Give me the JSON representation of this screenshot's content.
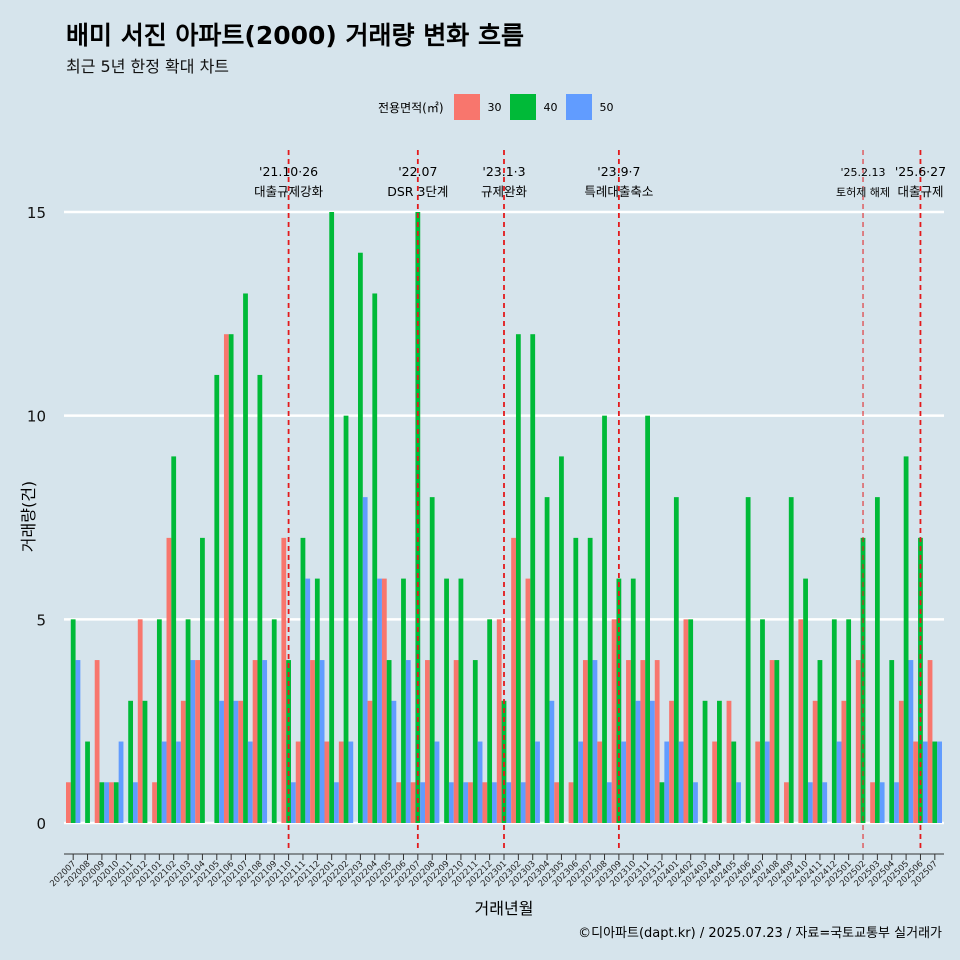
{
  "title": "배미 서진 아파트(2000) 거래량 변화 흐름",
  "subtitle": "최근 5년 한정 확대 차트",
  "legend": {
    "title": "전용면적(㎡)",
    "items": [
      {
        "label": "30",
        "color": "#f8766d"
      },
      {
        "label": "40",
        "color": "#00ba38"
      },
      {
        "label": "50",
        "color": "#619cff"
      }
    ]
  },
  "footer": "©디아파트(dapt.kr) / 2025.07.23 / 자료=국토교통부 실거래가",
  "chart_data": {
    "type": "bar",
    "xlabel": "거래년월",
    "ylabel": "거래량(건)",
    "ylim": [
      0,
      15.5
    ],
    "yticks": [
      0,
      5,
      10,
      15
    ],
    "grid": true,
    "legend_position": "top",
    "categories": [
      "202007",
      "202008",
      "202009",
      "202010",
      "202011",
      "202012",
      "202101",
      "202102",
      "202103",
      "202104",
      "202105",
      "202106",
      "202107",
      "202108",
      "202109",
      "202110",
      "202111",
      "202112",
      "202201",
      "202202",
      "202203",
      "202204",
      "202205",
      "202206",
      "202207",
      "202208",
      "202209",
      "202210",
      "202211",
      "202212",
      "202301",
      "202302",
      "202303",
      "202304",
      "202305",
      "202306",
      "202307",
      "202308",
      "202309",
      "202310",
      "202311",
      "202312",
      "202401",
      "202402",
      "202403",
      "202404",
      "202405",
      "202406",
      "202407",
      "202408",
      "202409",
      "202410",
      "202411",
      "202412",
      "202501",
      "202502",
      "202503",
      "202504",
      "202505",
      "202506",
      "202507"
    ],
    "series": [
      {
        "name": "30",
        "color": "#f8766d",
        "values": [
          1,
          null,
          4,
          1,
          null,
          5,
          1,
          7,
          3,
          4,
          null,
          12,
          3,
          4,
          null,
          7,
          2,
          4,
          2,
          2,
          null,
          3,
          6,
          1,
          1,
          4,
          null,
          4,
          1,
          1,
          5,
          7,
          6,
          null,
          1,
          1,
          4,
          2,
          5,
          4,
          4,
          4,
          3,
          5,
          null,
          2,
          3,
          null,
          2,
          4,
          1,
          5,
          3,
          null,
          3,
          4,
          1,
          null,
          3,
          2,
          4
        ]
      },
      {
        "name": "40",
        "color": "#00ba38",
        "values": [
          5,
          2,
          1,
          1,
          3,
          3,
          5,
          9,
          5,
          7,
          11,
          12,
          13,
          11,
          5,
          4,
          7,
          6,
          15,
          10,
          14,
          13,
          4,
          6,
          15,
          8,
          6,
          6,
          4,
          5,
          3,
          12,
          12,
          8,
          9,
          7,
          7,
          10,
          6,
          6,
          10,
          1,
          8,
          5,
          3,
          3,
          2,
          8,
          5,
          4,
          8,
          6,
          4,
          5,
          5,
          7,
          8,
          4,
          9,
          7,
          2
        ]
      },
      {
        "name": "50",
        "color": "#619cff",
        "values": [
          4,
          null,
          1,
          2,
          1,
          null,
          2,
          2,
          4,
          null,
          3,
          3,
          2,
          4,
          null,
          1,
          6,
          4,
          1,
          2,
          8,
          6,
          3,
          4,
          1,
          2,
          1,
          1,
          2,
          1,
          1,
          1,
          2,
          3,
          null,
          2,
          4,
          1,
          2,
          3,
          3,
          2,
          2,
          1,
          null,
          null,
          1,
          null,
          2,
          null,
          null,
          1,
          1,
          2,
          null,
          null,
          1,
          1,
          4,
          2,
          2
        ]
      }
    ],
    "annotations": [
      {
        "category": "202110",
        "date": "'21.10·26",
        "label": "대출규제강화",
        "style": "bold"
      },
      {
        "category": "202207",
        "date": "'22.07",
        "label": "DSR 3단계",
        "style": "bold"
      },
      {
        "category": "202301",
        "date": "'23.1·3",
        "label": "규제완화",
        "style": "bold"
      },
      {
        "category": "202309",
        "date": "'23.9·7",
        "label": "특례대출축소",
        "style": "bold"
      },
      {
        "category": "202502",
        "date": "'25.2.13",
        "label": "토허제 해제",
        "style": "thin"
      },
      {
        "category": "202506",
        "date": "'25.6·27",
        "label": "대출규제",
        "style": "bold"
      }
    ]
  }
}
